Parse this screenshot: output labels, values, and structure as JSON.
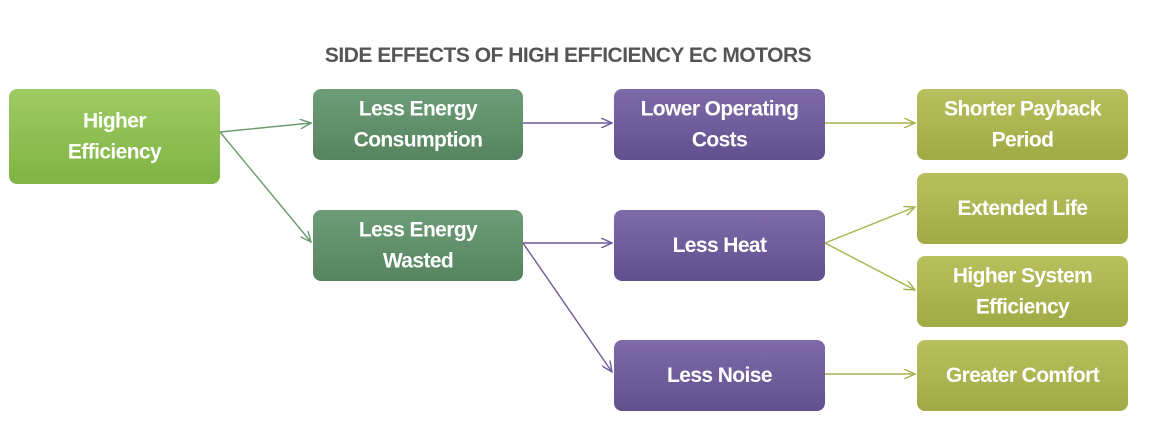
{
  "title": "SIDE EFFECTS OF HIGH EFFICIENCY EC MOTORS",
  "nodes": [
    {
      "lines": [
        "Higher",
        "Efficiency"
      ]
    },
    {
      "lines": [
        "Less Energy",
        "Consumption"
      ]
    },
    {
      "lines": [
        "Less Energy",
        "Wasted"
      ]
    },
    {
      "lines": [
        "Lower Operating",
        "Costs"
      ]
    },
    {
      "lines": [
        "Less Heat"
      ]
    },
    {
      "lines": [
        "Less Noise"
      ]
    },
    {
      "lines": [
        "Shorter Payback",
        "Period"
      ]
    },
    {
      "lines": [
        "Extended Life"
      ]
    },
    {
      "lines": [
        "Higher System",
        "Efficiency"
      ]
    },
    {
      "lines": [
        "Greater Comfort"
      ]
    }
  ]
}
